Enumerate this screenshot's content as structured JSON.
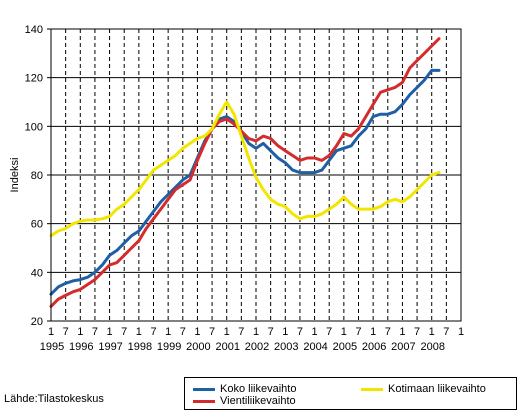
{
  "chart_data": {
    "type": "line",
    "title": "",
    "xlabel": "",
    "ylabel": "Indeksi",
    "ylim": [
      20,
      140
    ],
    "yticks": [
      20,
      40,
      60,
      80,
      100,
      120,
      140
    ],
    "x_range": [
      1995.0,
      2009.0
    ],
    "x_quarter_ticks": [
      "1",
      "7",
      "1",
      "7",
      "1",
      "7",
      "1",
      "7",
      "1",
      "7",
      "1",
      "7",
      "1",
      "7",
      "1",
      "7",
      "1",
      "7",
      "1",
      "7",
      "1",
      "7",
      "1",
      "7",
      "1",
      "7",
      "1",
      "7",
      "1"
    ],
    "year_labels": [
      "1995",
      "1996",
      "1997",
      "1998",
      "1999",
      "2000",
      "2001",
      "2002",
      "2003",
      "2004",
      "2005",
      "2006",
      "2007",
      "2008"
    ],
    "grid": {
      "horizontal": true,
      "vertical": "dashed"
    },
    "legend_position": "bottom-right",
    "series": [
      {
        "name": "Koko liikevaihto",
        "color": "#1F5FA6",
        "points": [
          [
            1995.0,
            31
          ],
          [
            1995.25,
            34
          ],
          [
            1995.5,
            35.5
          ],
          [
            1995.75,
            36.5
          ],
          [
            1996.0,
            37
          ],
          [
            1996.25,
            38
          ],
          [
            1996.5,
            40
          ],
          [
            1996.75,
            43
          ],
          [
            1997.0,
            47
          ],
          [
            1997.25,
            49
          ],
          [
            1997.5,
            52
          ],
          [
            1997.75,
            55
          ],
          [
            1998.0,
            57
          ],
          [
            1998.25,
            61
          ],
          [
            1998.5,
            65
          ],
          [
            1998.75,
            69
          ],
          [
            1999.0,
            72
          ],
          [
            1999.25,
            75
          ],
          [
            1999.5,
            78
          ],
          [
            1999.75,
            80
          ],
          [
            2000.0,
            87
          ],
          [
            2000.25,
            94
          ],
          [
            2000.5,
            99
          ],
          [
            2000.75,
            103
          ],
          [
            2001.0,
            104
          ],
          [
            2001.25,
            102
          ],
          [
            2001.5,
            98
          ],
          [
            2001.75,
            93
          ],
          [
            2002.0,
            91
          ],
          [
            2002.25,
            93
          ],
          [
            2002.5,
            90
          ],
          [
            2002.75,
            87
          ],
          [
            2003.0,
            85
          ],
          [
            2003.25,
            82
          ],
          [
            2003.5,
            81
          ],
          [
            2003.75,
            81
          ],
          [
            2004.0,
            81
          ],
          [
            2004.25,
            82
          ],
          [
            2004.5,
            86
          ],
          [
            2004.75,
            90
          ],
          [
            2005.0,
            91
          ],
          [
            2005.25,
            92
          ],
          [
            2005.5,
            96
          ],
          [
            2005.75,
            99
          ],
          [
            2006.0,
            104
          ],
          [
            2006.25,
            105
          ],
          [
            2006.5,
            105
          ],
          [
            2006.75,
            106
          ],
          [
            2007.0,
            109
          ],
          [
            2007.25,
            113
          ],
          [
            2007.5,
            116
          ],
          [
            2007.75,
            119
          ],
          [
            2008.0,
            123
          ],
          [
            2008.25,
            123
          ]
        ]
      },
      {
        "name": "Vientiliikevaihto",
        "color": "#D42C2C",
        "points": [
          [
            1995.0,
            26
          ],
          [
            1995.25,
            29
          ],
          [
            1995.5,
            30.5
          ],
          [
            1995.75,
            32
          ],
          [
            1996.0,
            33
          ],
          [
            1996.25,
            35
          ],
          [
            1996.5,
            37
          ],
          [
            1996.75,
            40
          ],
          [
            1997.0,
            43
          ],
          [
            1997.25,
            44
          ],
          [
            1997.5,
            47
          ],
          [
            1997.75,
            50
          ],
          [
            1998.0,
            53
          ],
          [
            1998.25,
            58
          ],
          [
            1998.5,
            62
          ],
          [
            1998.75,
            66
          ],
          [
            1999.0,
            70
          ],
          [
            1999.25,
            74
          ],
          [
            1999.5,
            76
          ],
          [
            1999.75,
            78
          ],
          [
            2000.0,
            86
          ],
          [
            2000.25,
            93
          ],
          [
            2000.5,
            99
          ],
          [
            2000.75,
            102
          ],
          [
            2001.0,
            103
          ],
          [
            2001.25,
            101
          ],
          [
            2001.5,
            98
          ],
          [
            2001.75,
            95
          ],
          [
            2002.0,
            94
          ],
          [
            2002.25,
            96
          ],
          [
            2002.5,
            95
          ],
          [
            2002.75,
            92
          ],
          [
            2003.0,
            90
          ],
          [
            2003.25,
            88
          ],
          [
            2003.5,
            86
          ],
          [
            2003.75,
            87
          ],
          [
            2004.0,
            87
          ],
          [
            2004.25,
            86
          ],
          [
            2004.5,
            88
          ],
          [
            2004.75,
            92
          ],
          [
            2005.0,
            97
          ],
          [
            2005.25,
            96
          ],
          [
            2005.5,
            99
          ],
          [
            2005.75,
            104
          ],
          [
            2006.0,
            109
          ],
          [
            2006.25,
            114
          ],
          [
            2006.5,
            115
          ],
          [
            2006.75,
            116
          ],
          [
            2007.0,
            118
          ],
          [
            2007.25,
            124
          ],
          [
            2007.5,
            127
          ],
          [
            2007.75,
            130
          ],
          [
            2008.0,
            133
          ],
          [
            2008.25,
            136
          ]
        ]
      },
      {
        "name": "Kotimaan liikevaihto",
        "color": "#F2E600",
        "points": [
          [
            1995.0,
            55
          ],
          [
            1995.25,
            57
          ],
          [
            1995.5,
            58
          ],
          [
            1995.75,
            60
          ],
          [
            1996.0,
            61
          ],
          [
            1996.25,
            61.5
          ],
          [
            1996.5,
            61.5
          ],
          [
            1996.75,
            62
          ],
          [
            1997.0,
            63
          ],
          [
            1997.25,
            66
          ],
          [
            1997.5,
            68
          ],
          [
            1997.75,
            71
          ],
          [
            1998.0,
            74
          ],
          [
            1998.25,
            78
          ],
          [
            1998.5,
            82
          ],
          [
            1998.75,
            84
          ],
          [
            1999.0,
            86
          ],
          [
            1999.25,
            88
          ],
          [
            1999.5,
            91
          ],
          [
            1999.75,
            93
          ],
          [
            2000.0,
            95
          ],
          [
            2000.25,
            96
          ],
          [
            2000.5,
            99
          ],
          [
            2000.75,
            105
          ],
          [
            2001.0,
            110
          ],
          [
            2001.25,
            105
          ],
          [
            2001.5,
            96
          ],
          [
            2001.75,
            87
          ],
          [
            2002.0,
            79
          ],
          [
            2002.25,
            74
          ],
          [
            2002.5,
            70
          ],
          [
            2002.75,
            68
          ],
          [
            2003.0,
            67
          ],
          [
            2003.25,
            64
          ],
          [
            2003.5,
            62
          ],
          [
            2003.75,
            63
          ],
          [
            2004.0,
            63
          ],
          [
            2004.25,
            64
          ],
          [
            2004.5,
            66
          ],
          [
            2004.75,
            68
          ],
          [
            2005.0,
            71
          ],
          [
            2005.25,
            68
          ],
          [
            2005.5,
            66
          ],
          [
            2005.75,
            66
          ],
          [
            2006.0,
            66
          ],
          [
            2006.25,
            67
          ],
          [
            2006.5,
            69
          ],
          [
            2006.75,
            70
          ],
          [
            2007.0,
            69
          ],
          [
            2007.25,
            71
          ],
          [
            2007.5,
            74
          ],
          [
            2007.75,
            77
          ],
          [
            2008.0,
            80
          ],
          [
            2008.25,
            81
          ]
        ]
      }
    ]
  },
  "source_text": "Lähde:Tilastokeskus",
  "legend": {
    "items": [
      {
        "label": "Koko liikevaihto",
        "color": "#1F5FA6"
      },
      {
        "label": "Kotimaan liikevaihto",
        "color": "#F2E600"
      },
      {
        "label": "Vientiliikevaihto",
        "color": "#D42C2C"
      }
    ]
  }
}
